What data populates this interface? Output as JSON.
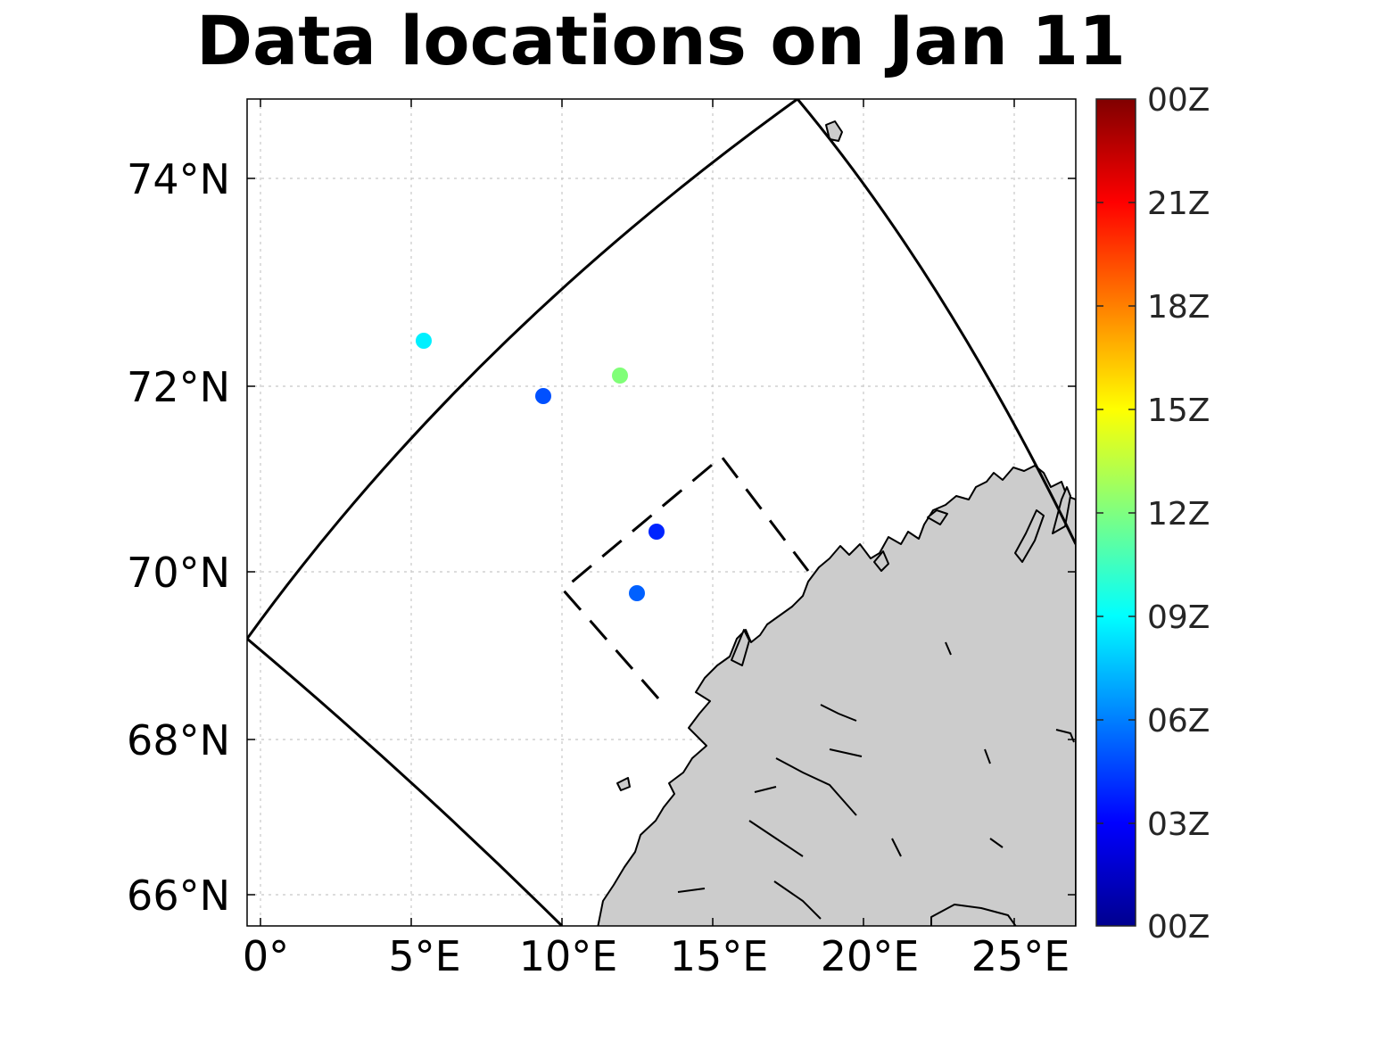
{
  "title": "Data locations on Jan 11",
  "map": {
    "lat_ticks": [
      "74°N",
      "72°N",
      "70°N",
      "68°N",
      "66°N"
    ],
    "lon_ticks": [
      "0°",
      "5°E",
      "10°E",
      "15°E",
      "20°E",
      "25°E"
    ],
    "grid": true,
    "land_color": "#cccccc"
  },
  "colorbar": {
    "labels": [
      "00Z",
      "21Z",
      "18Z",
      "15Z",
      "12Z",
      "09Z",
      "06Z",
      "03Z",
      "00Z"
    ],
    "colormap": "jet"
  },
  "points": [
    {
      "hour": 8.8,
      "color": "#00f0ff"
    },
    {
      "hour": 4.6,
      "color": "#0050ff"
    },
    {
      "hour": 12.3,
      "color": "#80ff78"
    },
    {
      "hour": 3.6,
      "color": "#0024ff"
    },
    {
      "hour": 5.2,
      "color": "#0060ff"
    }
  ]
}
